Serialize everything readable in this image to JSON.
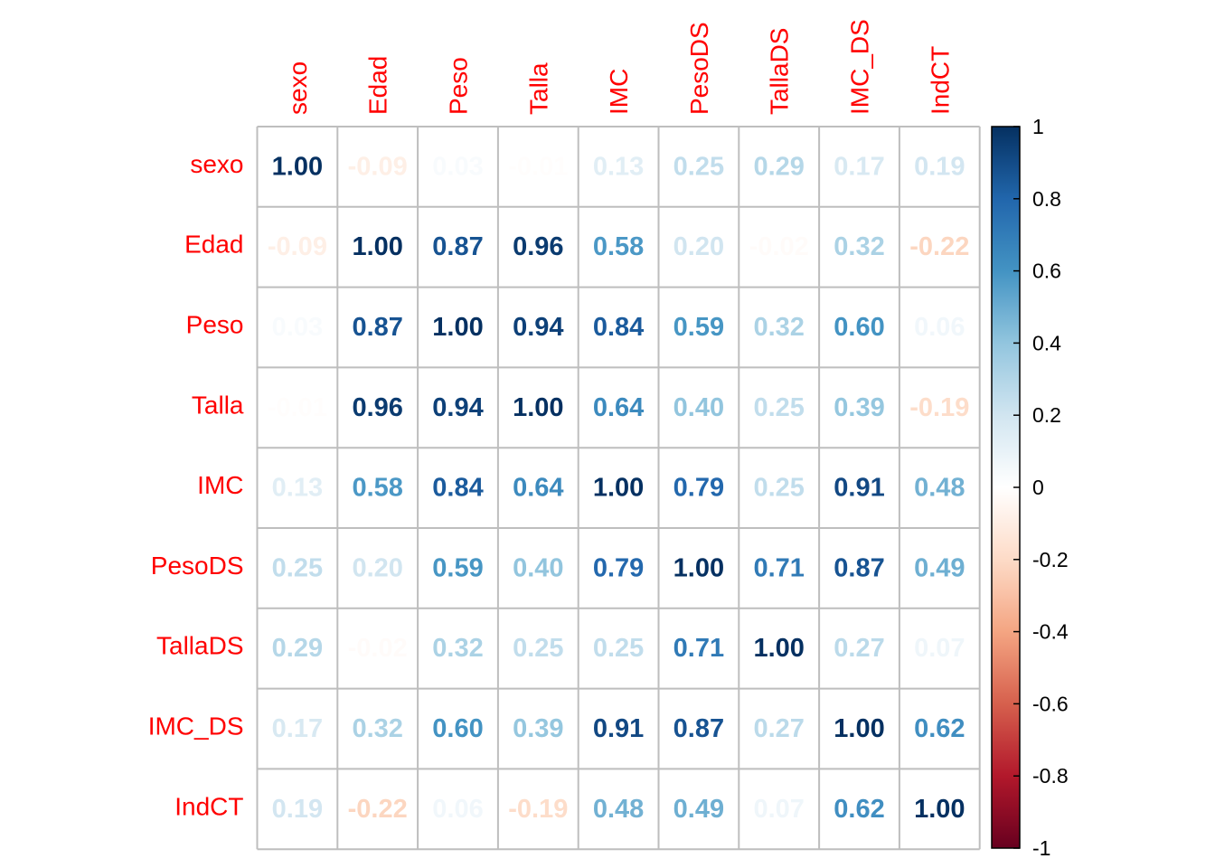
{
  "chart_data": {
    "type": "heatmap",
    "variables": [
      "sexo",
      "Edad",
      "Peso",
      "Talla",
      "IMC",
      "PesoDS",
      "TallaDS",
      "IMC_DS",
      "IndCT"
    ],
    "matrix": [
      [
        1.0,
        -0.09,
        0.03,
        -0.01,
        0.13,
        0.25,
        0.29,
        0.17,
        0.19
      ],
      [
        -0.09,
        1.0,
        0.87,
        0.96,
        0.58,
        0.2,
        -0.02,
        0.32,
        -0.22
      ],
      [
        0.03,
        0.87,
        1.0,
        0.94,
        0.84,
        0.59,
        0.32,
        0.6,
        0.06
      ],
      [
        -0.01,
        0.96,
        0.94,
        1.0,
        0.64,
        0.4,
        0.25,
        0.39,
        -0.19
      ],
      [
        0.13,
        0.58,
        0.84,
        0.64,
        1.0,
        0.79,
        0.25,
        0.91,
        0.48
      ],
      [
        0.25,
        0.2,
        0.59,
        0.4,
        0.79,
        1.0,
        0.71,
        0.87,
        0.49
      ],
      [
        0.29,
        -0.02,
        0.32,
        0.25,
        0.25,
        0.71,
        1.0,
        0.27,
        0.07
      ],
      [
        0.17,
        0.32,
        0.6,
        0.39,
        0.91,
        0.87,
        0.27,
        1.0,
        0.62
      ],
      [
        0.19,
        -0.22,
        0.06,
        -0.19,
        0.48,
        0.49,
        0.07,
        0.62,
        1.0
      ]
    ],
    "value_range": [
      -1,
      1
    ],
    "colorbar": {
      "ticks": [
        "1",
        "0.8",
        "0.6",
        "0.4",
        "0.2",
        "0",
        "-0.2",
        "-0.4",
        "-0.6",
        "-0.8",
        "-1"
      ],
      "tick_values": [
        1,
        0.8,
        0.6,
        0.4,
        0.2,
        0,
        -0.2,
        -0.4,
        -0.6,
        -0.8,
        -1
      ],
      "placement": "right"
    },
    "label_color": "#FF0000",
    "grid": true,
    "palette": [
      "#67001F",
      "#B2182B",
      "#D6604D",
      "#F4A582",
      "#FDDBC7",
      "#FFFFFF",
      "#D1E5F0",
      "#92C5DE",
      "#4393C3",
      "#2166AC",
      "#053061"
    ]
  }
}
